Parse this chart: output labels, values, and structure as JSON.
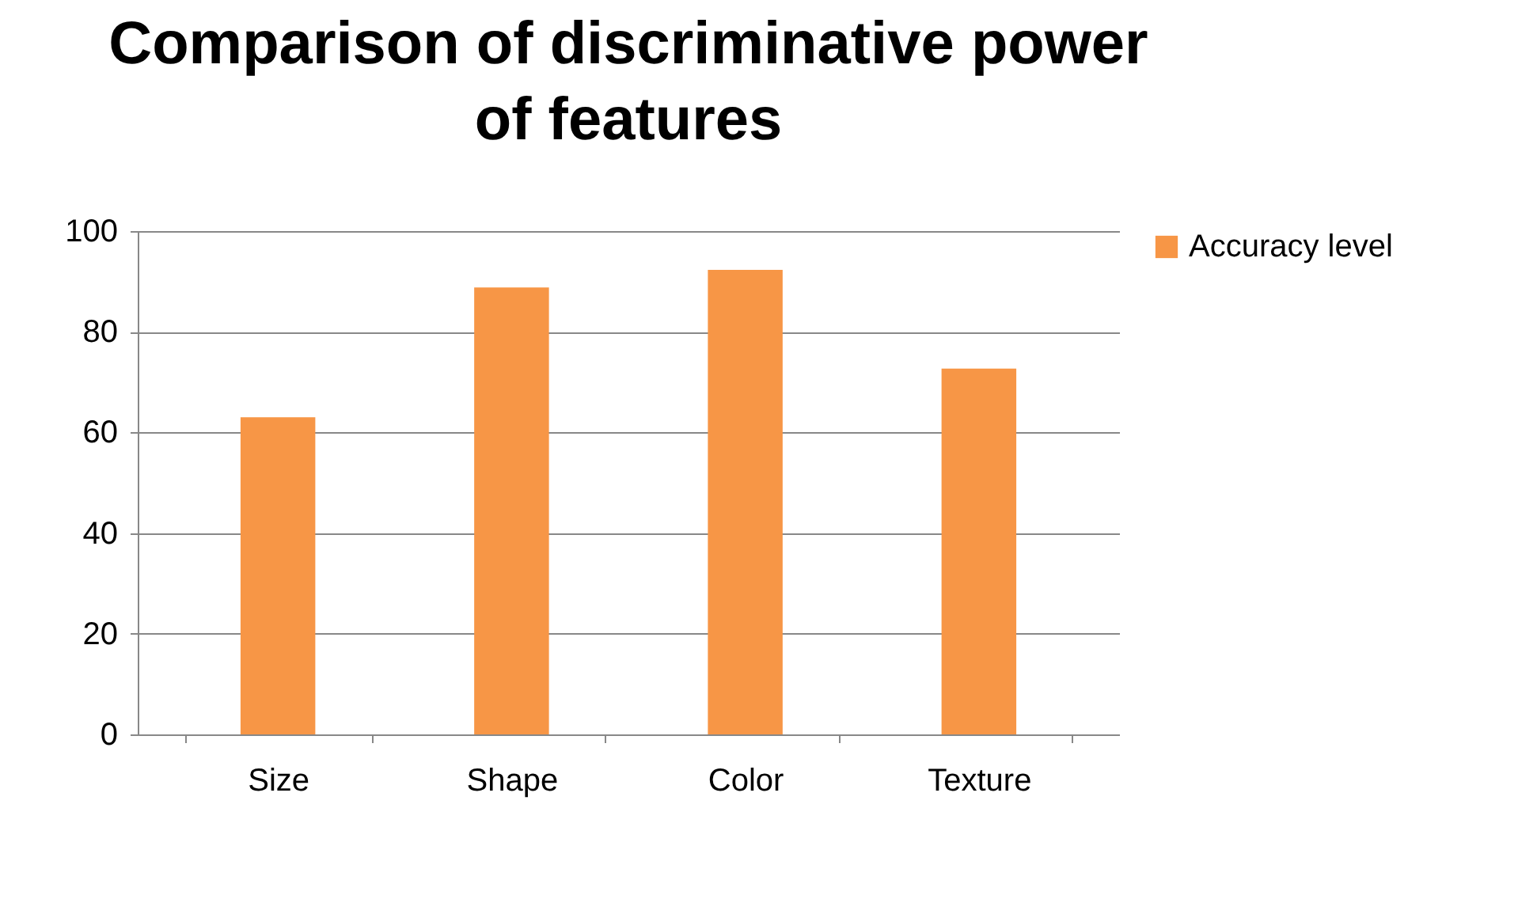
{
  "chart_data": {
    "type": "bar",
    "title": [
      "Comparison of discriminative power",
      "of features"
    ],
    "categories": [
      "Size",
      "Shape",
      "Color",
      "Texture"
    ],
    "series": [
      {
        "name": "Accuracy level",
        "color": "#f79646",
        "values": [
          63,
          88.8,
          92.3,
          72.7
        ]
      }
    ],
    "ylim": [
      0,
      100
    ],
    "yticks": [
      0,
      20,
      40,
      60,
      80,
      100
    ],
    "grid": "y",
    "legend": "right"
  }
}
